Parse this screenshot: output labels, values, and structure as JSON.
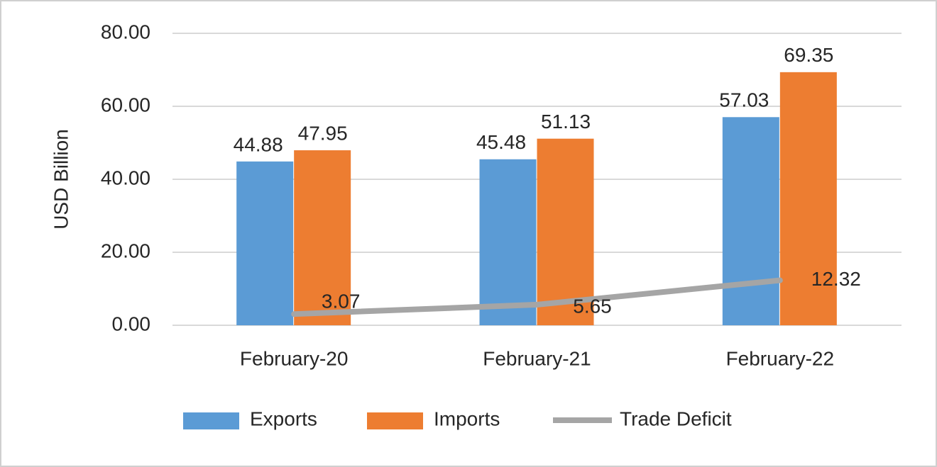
{
  "chart_data": {
    "type": "bar",
    "y_label": "USD Billion",
    "categories": [
      "February-20",
      "February-21",
      "February-22"
    ],
    "series": [
      {
        "name": "Exports",
        "type": "bar",
        "color": "#5b9bd5",
        "values": [
          44.88,
          45.48,
          57.03
        ]
      },
      {
        "name": "Imports",
        "type": "bar",
        "color": "#ed7d31",
        "values": [
          47.95,
          51.13,
          69.35
        ]
      },
      {
        "name": "Trade Deficit",
        "type": "line",
        "color": "#a5a5a5",
        "values": [
          3.07,
          5.65,
          12.32
        ]
      }
    ],
    "ylim": [
      0,
      80
    ],
    "yticks": [
      {
        "value": 0,
        "label": "0.00"
      },
      {
        "value": 20,
        "label": "20.00"
      },
      {
        "value": 40,
        "label": "40.00"
      },
      {
        "value": 60,
        "label": "60.00"
      },
      {
        "value": 80,
        "label": "80.00"
      }
    ],
    "grid": true,
    "legend": "bottom"
  }
}
